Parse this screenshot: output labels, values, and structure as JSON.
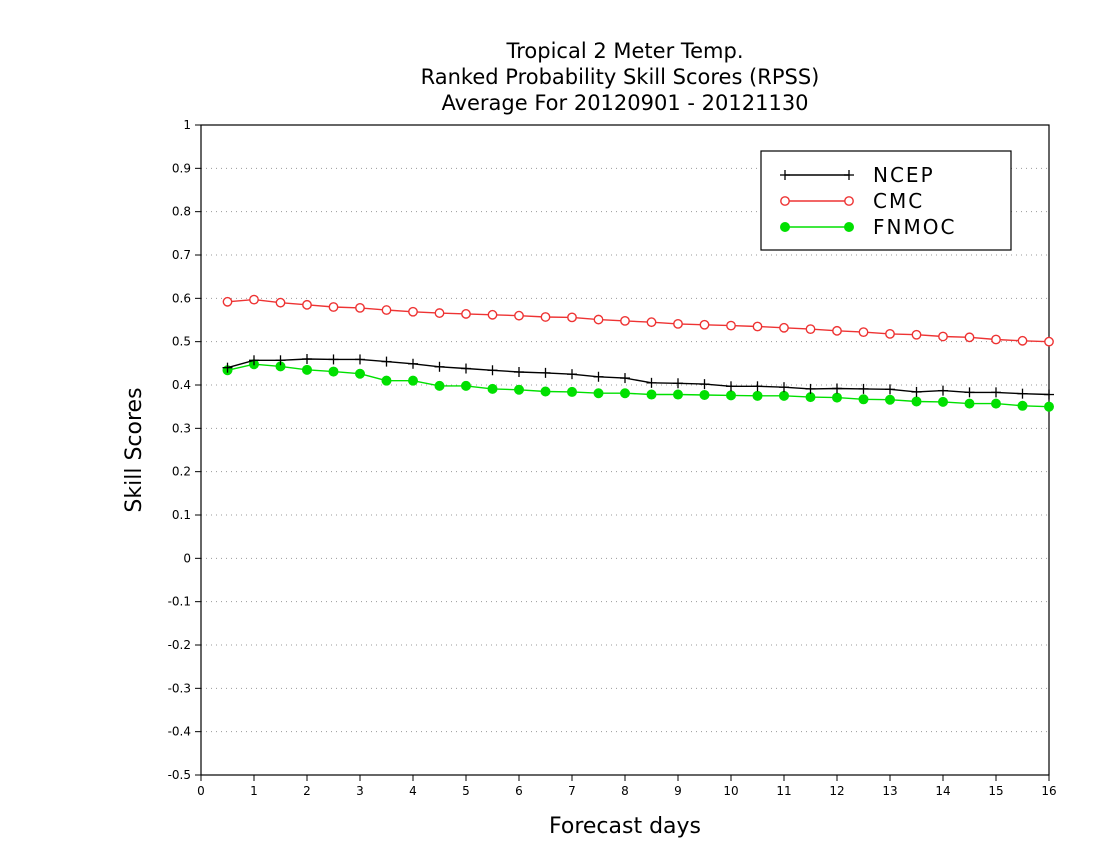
{
  "chart_data": {
    "type": "line",
    "title": [
      "Tropical 2 Meter Temp.",
      "Ranked Probability Skill Scores (RPSS)",
      "Average For 20120901 - 20121130"
    ],
    "xlabel": "Forecast days",
    "ylabel": "Skill Scores",
    "xlim": [
      0,
      16
    ],
    "ylim": [
      -0.5,
      1
    ],
    "x_ticks": [
      "0",
      "1",
      "2",
      "3",
      "4",
      "5",
      "6",
      "7",
      "8",
      "9",
      "10",
      "11",
      "12",
      "13",
      "14",
      "15",
      "16"
    ],
    "y_ticks": [
      "-0.5",
      "-0.4",
      "-0.3",
      "-0.2",
      "-0.1",
      "0",
      "0.1",
      "0.2",
      "0.3",
      "0.4",
      "0.5",
      "0.6",
      "0.7",
      "0.8",
      "0.9",
      "1"
    ],
    "grid": "horizontal dotted",
    "legend_position": "top-right",
    "x": [
      0.5,
      1,
      1.5,
      2,
      2.5,
      3,
      3.5,
      4,
      4.5,
      5,
      5.5,
      6,
      6.5,
      7,
      7.5,
      8,
      8.5,
      9,
      9.5,
      10,
      10.5,
      11,
      11.5,
      12,
      12.5,
      13,
      13.5,
      14,
      14.5,
      15,
      15.5,
      16
    ],
    "series": [
      {
        "name": "NCEP",
        "color": "#000000",
        "marker": "plus",
        "values": [
          0.44,
          0.457,
          0.457,
          0.46,
          0.459,
          0.459,
          0.454,
          0.449,
          0.442,
          0.438,
          0.434,
          0.43,
          0.428,
          0.425,
          0.419,
          0.416,
          0.405,
          0.404,
          0.402,
          0.397,
          0.397,
          0.395,
          0.391,
          0.392,
          0.391,
          0.39,
          0.384,
          0.387,
          0.383,
          0.383,
          0.38,
          0.378
        ]
      },
      {
        "name": "CMC",
        "color": "#ee3333",
        "marker": "open-circle",
        "values": [
          0.592,
          0.597,
          0.59,
          0.585,
          0.58,
          0.578,
          0.573,
          0.569,
          0.566,
          0.564,
          0.562,
          0.56,
          0.557,
          0.556,
          0.551,
          0.548,
          0.545,
          0.541,
          0.539,
          0.537,
          0.535,
          0.532,
          0.529,
          0.525,
          0.522,
          0.518,
          0.516,
          0.512,
          0.51,
          0.505,
          0.502,
          0.5
        ]
      },
      {
        "name": "FNMOC",
        "color": "#00e000",
        "marker": "filled-circle",
        "values": [
          0.434,
          0.448,
          0.443,
          0.435,
          0.431,
          0.426,
          0.41,
          0.41,
          0.398,
          0.398,
          0.391,
          0.389,
          0.385,
          0.384,
          0.381,
          0.381,
          0.378,
          0.378,
          0.377,
          0.376,
          0.375,
          0.375,
          0.372,
          0.371,
          0.367,
          0.366,
          0.362,
          0.361,
          0.357,
          0.357,
          0.352,
          0.35
        ]
      }
    ]
  }
}
